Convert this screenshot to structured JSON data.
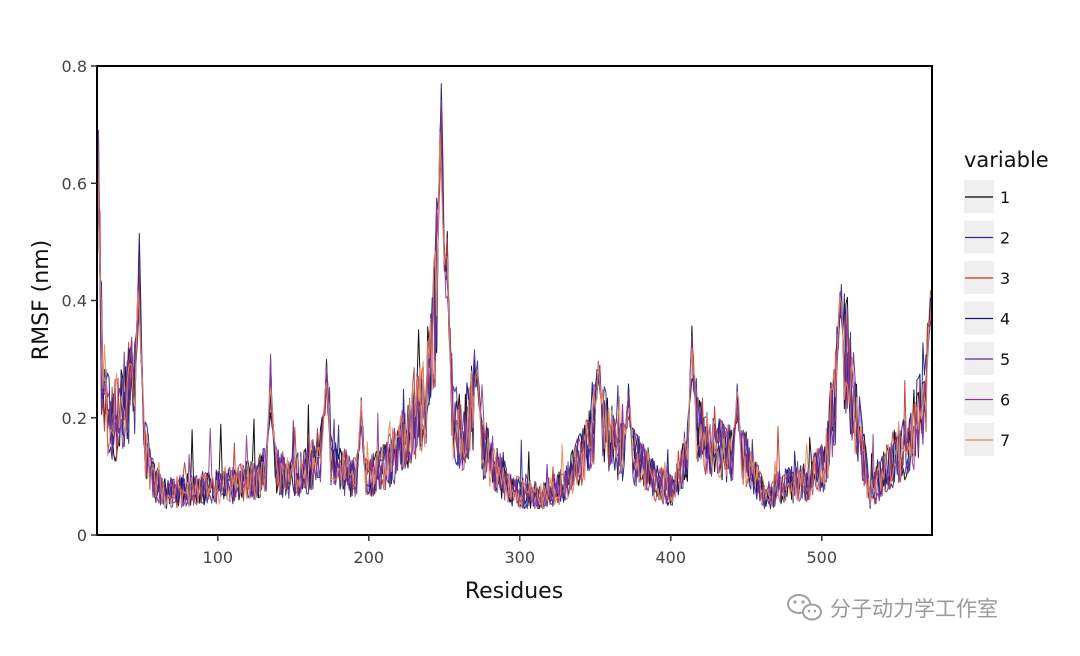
{
  "chart_data": {
    "type": "line",
    "title": "",
    "xlabel": "Residues",
    "ylabel": "RMSF (nm)",
    "xlim": [
      20,
      573
    ],
    "ylim": [
      0,
      0.8
    ],
    "x_ticks": [
      100,
      200,
      300,
      400,
      500
    ],
    "y_ticks": [
      0,
      0.2,
      0.4,
      0.6,
      0.8
    ],
    "y_tick_labels": [
      "0",
      "0.2",
      "0.4",
      "0.6",
      "0.8"
    ],
    "legend_title": "variable",
    "legend_position": "right",
    "grid": false,
    "x_residue_start": 20,
    "x_residue_end": 573,
    "series": [
      {
        "name": "1",
        "color": "#000000"
      },
      {
        "name": "2",
        "color": "#2b2b8f"
      },
      {
        "name": "3",
        "color": "#c0392b"
      },
      {
        "name": "4",
        "color": "#1a1a7a"
      },
      {
        "name": "5",
        "color": "#5b2a9e"
      },
      {
        "name": "6",
        "color": "#8e3b8e"
      },
      {
        "name": "7",
        "color": "#e8895e"
      }
    ],
    "profile_keypoints": [
      [
        20,
        0.62
      ],
      [
        23,
        0.32
      ],
      [
        26,
        0.22
      ],
      [
        30,
        0.19
      ],
      [
        35,
        0.21
      ],
      [
        40,
        0.24
      ],
      [
        45,
        0.26
      ],
      [
        48,
        0.25
      ],
      [
        52,
        0.15
      ],
      [
        58,
        0.09
      ],
      [
        65,
        0.07
      ],
      [
        75,
        0.075
      ],
      [
        90,
        0.08
      ],
      [
        110,
        0.085
      ],
      [
        125,
        0.095
      ],
      [
        135,
        0.12
      ],
      [
        145,
        0.095
      ],
      [
        160,
        0.11
      ],
      [
        170,
        0.15
      ],
      [
        180,
        0.11
      ],
      [
        200,
        0.095
      ],
      [
        215,
        0.13
      ],
      [
        228,
        0.18
      ],
      [
        238,
        0.24
      ],
      [
        243,
        0.36
      ],
      [
        247,
        0.48
      ],
      [
        251,
        0.34
      ],
      [
        256,
        0.2
      ],
      [
        262,
        0.17
      ],
      [
        270,
        0.23
      ],
      [
        276,
        0.15
      ],
      [
        285,
        0.11
      ],
      [
        295,
        0.075
      ],
      [
        305,
        0.07
      ],
      [
        315,
        0.065
      ],
      [
        330,
        0.09
      ],
      [
        345,
        0.15
      ],
      [
        352,
        0.22
      ],
      [
        358,
        0.17
      ],
      [
        368,
        0.14
      ],
      [
        378,
        0.13
      ],
      [
        390,
        0.09
      ],
      [
        402,
        0.075
      ],
      [
        410,
        0.13
      ],
      [
        416,
        0.2
      ],
      [
        425,
        0.15
      ],
      [
        440,
        0.14
      ],
      [
        450,
        0.13
      ],
      [
        462,
        0.065
      ],
      [
        475,
        0.085
      ],
      [
        490,
        0.09
      ],
      [
        502,
        0.12
      ],
      [
        510,
        0.26
      ],
      [
        515,
        0.33
      ],
      [
        520,
        0.25
      ],
      [
        526,
        0.16
      ],
      [
        532,
        0.07
      ],
      [
        540,
        0.1
      ],
      [
        550,
        0.14
      ],
      [
        560,
        0.16
      ],
      [
        568,
        0.25
      ],
      [
        573,
        0.31
      ]
    ],
    "spikes": [
      [
        20,
        0.7
      ],
      [
        48,
        0.52
      ],
      [
        135,
        0.31
      ],
      [
        172,
        0.32
      ],
      [
        195,
        0.24
      ],
      [
        248,
        0.77
      ],
      [
        252,
        0.52
      ],
      [
        272,
        0.3
      ],
      [
        352,
        0.29
      ],
      [
        372,
        0.27
      ],
      [
        414,
        0.37
      ],
      [
        444,
        0.26
      ],
      [
        512,
        0.43
      ],
      [
        572,
        0.42
      ]
    ]
  },
  "watermark": {
    "text": "分子动力学工作室",
    "icon": "wechat-icon"
  }
}
